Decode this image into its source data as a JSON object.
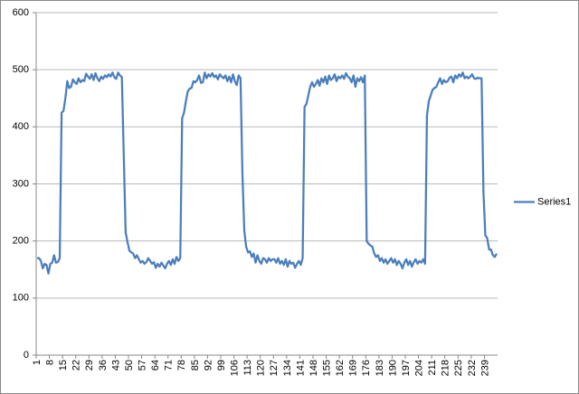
{
  "chart_data": {
    "type": "line",
    "categories": [
      1,
      null,
      null,
      null,
      null,
      null,
      null,
      8,
      null,
      null,
      null,
      null,
      null,
      null,
      15,
      null,
      null,
      null,
      null,
      null,
      null,
      22,
      null,
      null,
      null,
      null,
      null,
      null,
      29,
      null,
      null,
      null,
      null,
      null,
      null,
      36,
      null,
      null,
      null,
      null,
      null,
      null,
      43,
      null,
      null,
      null,
      null,
      null,
      null,
      50,
      null,
      null,
      null,
      null,
      null,
      null,
      57,
      null,
      null,
      null,
      null,
      null,
      null,
      64,
      null,
      null,
      null,
      null,
      null,
      null,
      71,
      null,
      null,
      null,
      null,
      null,
      null,
      78,
      null,
      null,
      null,
      null,
      null,
      null,
      85,
      null,
      null,
      null,
      null,
      null,
      null,
      92,
      null,
      null,
      null,
      null,
      null,
      null,
      99,
      null,
      null,
      null,
      null,
      null,
      null,
      106,
      null,
      null,
      null,
      null,
      null,
      null,
      113,
      null,
      null,
      null,
      null,
      null,
      null,
      120,
      null,
      null,
      null,
      null,
      null,
      null,
      127,
      null,
      null,
      null,
      null,
      null,
      null,
      134,
      null,
      null,
      null,
      null,
      null,
      null,
      141,
      null,
      null,
      null,
      null,
      null,
      null,
      148,
      null,
      null,
      null,
      null,
      null,
      null,
      155,
      null,
      null,
      null,
      null,
      null,
      null,
      162,
      null,
      null,
      null,
      null,
      null,
      null,
      169,
      null,
      null,
      null,
      null,
      null,
      null,
      176,
      null,
      null,
      null,
      null,
      null,
      null,
      183,
      null,
      null,
      null,
      null,
      null,
      null,
      190,
      null,
      null,
      null,
      null,
      null,
      null,
      197,
      null,
      null,
      null,
      null,
      null,
      null,
      204,
      null,
      null,
      null,
      null,
      null,
      null,
      211,
      null,
      null,
      null,
      null,
      null,
      null,
      218,
      null,
      null,
      null,
      null,
      null,
      null,
      225,
      null,
      null,
      null,
      null,
      null,
      null,
      232,
      null,
      null,
      null,
      null,
      null,
      null,
      239,
      null,
      null,
      null,
      null,
      null,
      null
    ],
    "series": [
      {
        "name": "Series1",
        "color": "#4a7ebb",
        "values": [
          170,
          170,
          165,
          152,
          160,
          158,
          143,
          160,
          162,
          175,
          162,
          163,
          170,
          425,
          428,
          450,
          480,
          468,
          470,
          483,
          478,
          475,
          485,
          478,
          482,
          480,
          493,
          488,
          484,
          492,
          482,
          494,
          485,
          480,
          488,
          484,
          490,
          487,
          492,
          488,
          495,
          487,
          484,
          495,
          490,
          487,
          350,
          215,
          198,
          183,
          180,
          178,
          170,
          175,
          168,
          162,
          165,
          160,
          163,
          170,
          165,
          160,
          163,
          153,
          160,
          155,
          162,
          157,
          152,
          160,
          165,
          158,
          168,
          160,
          172,
          165,
          170,
          415,
          425,
          445,
          462,
          467,
          468,
          480,
          478,
          482,
          490,
          477,
          478,
          495,
          485,
          492,
          488,
          494,
          487,
          490,
          483,
          492,
          488,
          485,
          490,
          480,
          488,
          478,
          492,
          480,
          473,
          490,
          485,
          320,
          218,
          190,
          180,
          182,
          172,
          178,
          162,
          175,
          165,
          160,
          170,
          168,
          162,
          170,
          165,
          168,
          168,
          162,
          170,
          160,
          165,
          158,
          168,
          155,
          165,
          160,
          162,
          153,
          160,
          165,
          158,
          170,
          435,
          440,
          455,
          470,
          478,
          470,
          475,
          482,
          472,
          485,
          478,
          488,
          475,
          490,
          482,
          485,
          492,
          480,
          488,
          485,
          490,
          484,
          494,
          488,
          485,
          478,
          490,
          470,
          485,
          480,
          487,
          478,
          490,
          200,
          195,
          192,
          190,
          178,
          172,
          175,
          165,
          170,
          162,
          168,
          160,
          165,
          170,
          162,
          168,
          158,
          165,
          160,
          152,
          162,
          168,
          158,
          165,
          155,
          163,
          168,
          160,
          165,
          162,
          168,
          160,
          420,
          445,
          455,
          465,
          468,
          470,
          478,
          485,
          475,
          482,
          478,
          480,
          486,
          488,
          478,
          490,
          485,
          492,
          488,
          495,
          485,
          488,
          485,
          488,
          492,
          485,
          484,
          486,
          485,
          485,
          285,
          210,
          205,
          185,
          185,
          175,
          172,
          178
        ]
      }
    ],
    "ylim": [
      0,
      600
    ],
    "yticks": [
      0,
      100,
      200,
      300,
      400,
      500,
      600
    ],
    "grid": true,
    "legend": "right"
  }
}
